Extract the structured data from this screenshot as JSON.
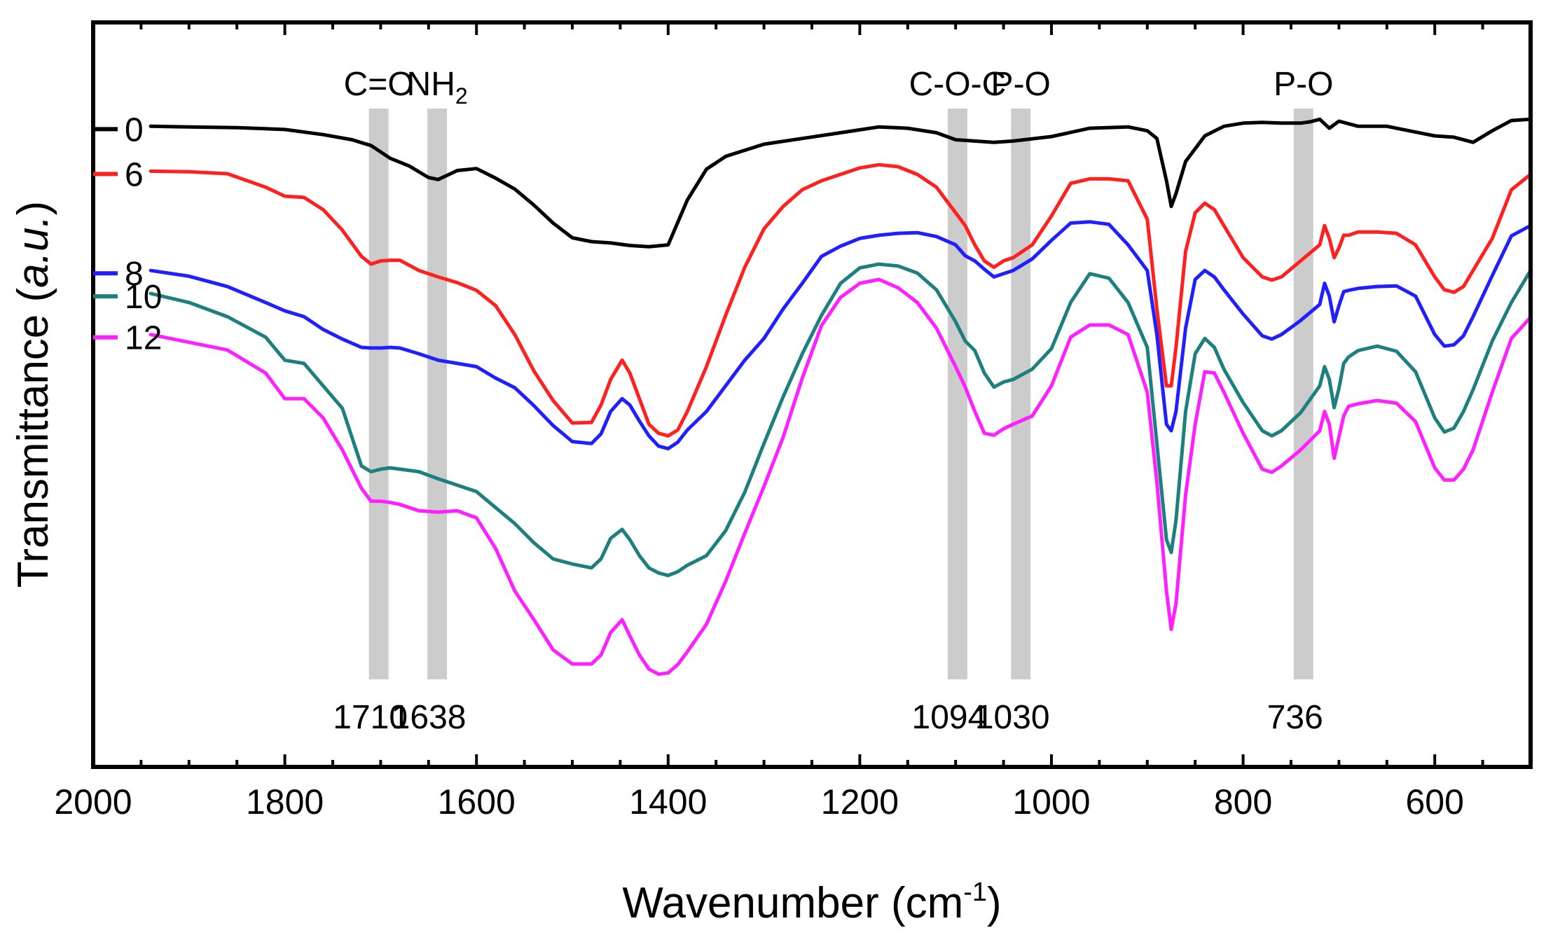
{
  "chart_data": {
    "type": "line",
    "xlabel": "Wavenumber (cm",
    "xlabel_sup": "-1",
    "xlabel_close": ")",
    "ylabel": "Transmittance (",
    "ylabel_italic": "a.u.",
    "ylabel_close": ")",
    "xlim": [
      2000,
      500
    ],
    "x_reversed": true,
    "xticks": [
      2000,
      1800,
      1600,
      1400,
      1200,
      1000,
      800,
      600
    ],
    "xtick_labels": [
      "2000",
      "1800",
      "1600",
      "1400",
      "1200",
      "1000",
      "800",
      "600"
    ],
    "ylim": [
      0,
      100
    ],
    "yticks_shown": false,
    "highlight_bands": [
      {
        "center": 1702,
        "label": "C=O",
        "label_sub": "",
        "peak_label": "1710"
      },
      {
        "center": 1641,
        "label": "NH",
        "label_sub": "2",
        "peak_label": "1638"
      },
      {
        "center": 1098,
        "label": "C-O-C",
        "label_sub": "",
        "peak_label": "1094"
      },
      {
        "center": 1032,
        "label": "P-O",
        "label_sub": "",
        "peak_label": "1030"
      },
      {
        "center": 737,
        "label": "P-O",
        "label_sub": "",
        "peak_label": "736"
      }
    ],
    "series": [
      {
        "name": "0",
        "color": "#000000",
        "x": [
          1940,
          1900,
          1850,
          1800,
          1760,
          1730,
          1710,
          1690,
          1670,
          1650,
          1640,
          1620,
          1600,
          1580,
          1560,
          1540,
          1520,
          1500,
          1480,
          1460,
          1440,
          1420,
          1400,
          1380,
          1360,
          1340,
          1300,
          1260,
          1220,
          1180,
          1150,
          1120,
          1100,
          1080,
          1060,
          1040,
          1000,
          960,
          920,
          900,
          890,
          880,
          875,
          870,
          860,
          840,
          820,
          800,
          780,
          760,
          740,
          730,
          720,
          710,
          700,
          680,
          650,
          620,
          600,
          580,
          560,
          540,
          520,
          500
        ],
        "y": [
          94.5,
          94.4,
          94.3,
          94,
          93.2,
          92.4,
          91.5,
          89.5,
          88.3,
          86.5,
          86.2,
          87.6,
          87.9,
          86.4,
          84.7,
          82.2,
          79.4,
          77.1,
          76.5,
          76.3,
          75.9,
          75.7,
          76,
          83,
          87.8,
          89.8,
          91.7,
          92.6,
          93.5,
          94.4,
          94.2,
          93.5,
          92.4,
          92.2,
          92,
          92.2,
          92.9,
          94.2,
          94.4,
          93.8,
          92.6,
          86,
          82,
          84,
          89,
          93,
          94.5,
          95,
          95.1,
          95,
          95,
          95.2,
          95.6,
          94.2,
          95.3,
          94.5,
          94.5,
          93.6,
          93,
          92.8,
          92,
          93.8,
          95.4,
          95.6
        ]
      },
      {
        "name": "6",
        "color": "#ff2020",
        "x": [
          1940,
          1900,
          1860,
          1820,
          1800,
          1780,
          1760,
          1740,
          1720,
          1710,
          1700,
          1690,
          1680,
          1660,
          1640,
          1620,
          1600,
          1580,
          1560,
          1540,
          1520,
          1500,
          1480,
          1470,
          1460,
          1448,
          1440,
          1430,
          1420,
          1410,
          1400,
          1390,
          1380,
          1360,
          1340,
          1320,
          1300,
          1280,
          1260,
          1240,
          1220,
          1200,
          1180,
          1160,
          1140,
          1120,
          1100,
          1090,
          1080,
          1070,
          1060,
          1050,
          1040,
          1020,
          1000,
          980,
          960,
          940,
          920,
          900,
          890,
          880,
          875,
          870,
          860,
          850,
          840,
          830,
          820,
          800,
          780,
          770,
          760,
          740,
          720,
          715,
          710,
          705,
          700,
          695,
          690,
          680,
          660,
          640,
          620,
          600,
          590,
          580,
          570,
          560,
          540,
          520,
          500
        ],
        "y": [
          87.5,
          87.4,
          87.1,
          85,
          83.6,
          83.4,
          81.5,
          78.3,
          74.2,
          73,
          73.5,
          73.6,
          73.6,
          72,
          71,
          70.1,
          68.9,
          66.5,
          62,
          56.3,
          51.7,
          48.2,
          48.3,
          51,
          55,
          58,
          56,
          52,
          48,
          46.6,
          46.2,
          47.1,
          50,
          57,
          65,
          72.5,
          78.5,
          82,
          84.6,
          86,
          87,
          88,
          88.5,
          88.2,
          87,
          85,
          81,
          79,
          76,
          73.5,
          72.5,
          73.5,
          74,
          76,
          80.5,
          85.6,
          86.3,
          86.3,
          86,
          80,
          66,
          54,
          54,
          60,
          75,
          81,
          82.5,
          81.5,
          79,
          74,
          71,
          70.5,
          71,
          73.5,
          76,
          79,
          77,
          74,
          75.5,
          77.5,
          77.5,
          78,
          78,
          77.8,
          76,
          71,
          69,
          68.6,
          69.5,
          72,
          77,
          84.6,
          87
        ]
      },
      {
        "name": "8",
        "color": "#2020ff",
        "x": [
          1940,
          1900,
          1860,
          1820,
          1800,
          1780,
          1760,
          1740,
          1720,
          1710,
          1700,
          1690,
          1680,
          1660,
          1640,
          1620,
          1600,
          1580,
          1560,
          1540,
          1520,
          1500,
          1480,
          1470,
          1460,
          1448,
          1440,
          1430,
          1420,
          1410,
          1400,
          1390,
          1380,
          1360,
          1340,
          1320,
          1300,
          1280,
          1260,
          1240,
          1220,
          1200,
          1180,
          1160,
          1140,
          1120,
          1100,
          1090,
          1080,
          1070,
          1060,
          1050,
          1040,
          1020,
          1000,
          980,
          960,
          940,
          920,
          900,
          890,
          880,
          875,
          870,
          860,
          850,
          840,
          830,
          820,
          800,
          780,
          770,
          760,
          740,
          720,
          715,
          710,
          705,
          700,
          695,
          690,
          680,
          660,
          640,
          620,
          600,
          590,
          580,
          570,
          560,
          540,
          520,
          500
        ],
        "y": [
          72,
          71.1,
          69.5,
          67,
          65.7,
          64.8,
          62.8,
          61.3,
          60,
          59.9,
          59.9,
          60,
          59.9,
          59,
          58,
          57.5,
          57,
          55.2,
          53.7,
          50.9,
          47.8,
          45.3,
          45,
          46.5,
          50,
          52,
          51,
          48.5,
          46.2,
          44.6,
          44.2,
          45.2,
          47.1,
          50,
          54,
          58,
          61.4,
          66,
          70,
          74.2,
          75.8,
          77,
          77.5,
          77.8,
          77.9,
          77.3,
          76,
          74.3,
          73.5,
          72.2,
          71,
          71.5,
          72,
          73.8,
          76.7,
          79.4,
          79.6,
          79.2,
          76,
          72,
          62,
          48,
          47,
          50,
          63,
          70.6,
          72,
          71,
          69,
          65.2,
          61.8,
          61.3,
          62,
          64.2,
          66.7,
          70,
          68,
          64,
          66.5,
          68.7,
          68.9,
          69.2,
          69.5,
          69.6,
          68,
          62,
          60.2,
          60.4,
          61.8,
          64.8,
          71.2,
          77.4,
          79
        ]
      },
      {
        "name": "10",
        "color": "#1e7f7f",
        "x": [
          1940,
          1900,
          1860,
          1820,
          1800,
          1780,
          1760,
          1740,
          1720,
          1710,
          1700,
          1690,
          1680,
          1660,
          1640,
          1620,
          1600,
          1580,
          1560,
          1540,
          1520,
          1500,
          1480,
          1470,
          1460,
          1448,
          1440,
          1430,
          1420,
          1410,
          1400,
          1390,
          1380,
          1360,
          1340,
          1320,
          1300,
          1280,
          1260,
          1240,
          1220,
          1200,
          1180,
          1160,
          1140,
          1120,
          1100,
          1090,
          1080,
          1070,
          1060,
          1050,
          1040,
          1020,
          1000,
          980,
          960,
          940,
          920,
          900,
          890,
          880,
          875,
          870,
          860,
          850,
          840,
          830,
          820,
          800,
          780,
          770,
          760,
          740,
          720,
          715,
          710,
          705,
          700,
          695,
          690,
          680,
          660,
          640,
          620,
          600,
          590,
          580,
          570,
          560,
          540,
          520,
          500
        ],
        "y": [
          68.4,
          67,
          64.8,
          61.6,
          58,
          57.5,
          54,
          50.5,
          41.5,
          40.6,
          41,
          41.2,
          41,
          40.6,
          39.5,
          38.5,
          37.5,
          35,
          32.5,
          29.5,
          27,
          26.2,
          25.6,
          27,
          30.2,
          31.6,
          30,
          27.5,
          25.6,
          24.8,
          24.4,
          25,
          26,
          27.5,
          31.4,
          37.4,
          45,
          52.3,
          59,
          65,
          70,
          72.4,
          73,
          72.7,
          71.6,
          69,
          64,
          61,
          59.5,
          56,
          53.8,
          54.6,
          55,
          56.6,
          59.8,
          67,
          71.5,
          70.8,
          67,
          60,
          45,
          30,
          28,
          33,
          50,
          59,
          61.4,
          60,
          56.6,
          51.4,
          47,
          46.2,
          47,
          49.8,
          54,
          57,
          55,
          50.6,
          53.6,
          57.5,
          58.5,
          59.5,
          60.2,
          59.4,
          56.2,
          49,
          46.8,
          47.4,
          50,
          53.4,
          61,
          67,
          72
        ]
      },
      {
        "name": "12",
        "color": "#ff20ff",
        "x": [
          1940,
          1900,
          1860,
          1820,
          1800,
          1780,
          1760,
          1740,
          1720,
          1710,
          1700,
          1690,
          1680,
          1660,
          1640,
          1620,
          1600,
          1580,
          1560,
          1540,
          1520,
          1500,
          1480,
          1470,
          1460,
          1448,
          1440,
          1430,
          1420,
          1410,
          1400,
          1390,
          1380,
          1360,
          1340,
          1320,
          1300,
          1280,
          1260,
          1240,
          1220,
          1200,
          1180,
          1160,
          1140,
          1120,
          1100,
          1090,
          1080,
          1070,
          1060,
          1050,
          1040,
          1020,
          1000,
          980,
          960,
          940,
          920,
          900,
          890,
          880,
          875,
          870,
          860,
          850,
          840,
          830,
          820,
          800,
          780,
          770,
          760,
          740,
          720,
          715,
          710,
          705,
          700,
          695,
          690,
          680,
          660,
          640,
          620,
          600,
          590,
          580,
          570,
          560,
          540,
          520,
          500
        ],
        "y": [
          62,
          60.8,
          59.6,
          56,
          52,
          52,
          49,
          44,
          38,
          36,
          36,
          35.8,
          35.5,
          34.5,
          34.3,
          34.5,
          33.4,
          28.6,
          22,
          17.5,
          12.8,
          10.6,
          10.6,
          12,
          15.5,
          17.5,
          15,
          12,
          9.8,
          9,
          9.2,
          10.5,
          12.5,
          16.8,
          23.5,
          31,
          38.3,
          46,
          55.2,
          63.4,
          67.8,
          70,
          70.6,
          69.3,
          67,
          63,
          57,
          53.8,
          50,
          46.6,
          46.3,
          47.3,
          48,
          49.3,
          54,
          61.6,
          63.5,
          63.5,
          62,
          53,
          39,
          22,
          16,
          20,
          37,
          48,
          56.2,
          56,
          53,
          46.6,
          41,
          40.5,
          41.5,
          44,
          47,
          50,
          48,
          42.7,
          46,
          49.3,
          50.8,
          51.2,
          51.7,
          51.3,
          48.4,
          41.2,
          39.3,
          39.3,
          41,
          44,
          53,
          61.4,
          64.7
        ]
      }
    ]
  }
}
